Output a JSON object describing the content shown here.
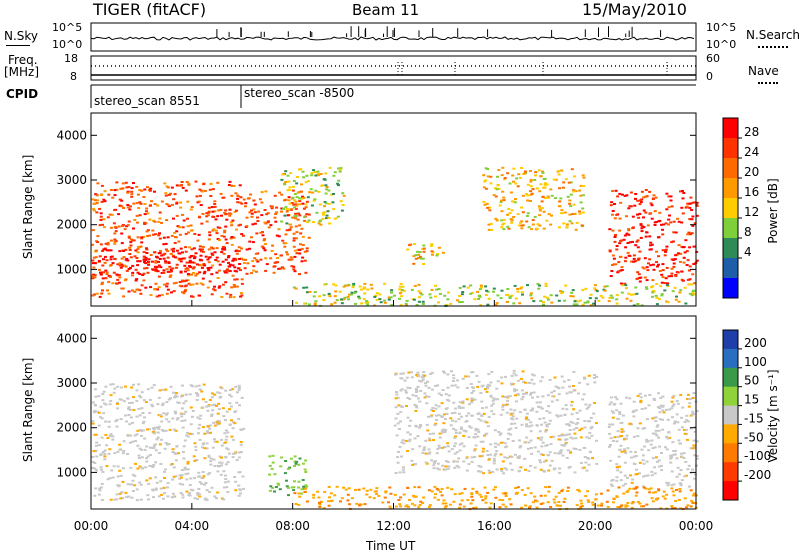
{
  "header": {
    "title": "TIGER (fitACF)",
    "beam": "Beam 11",
    "date": "15/May/2010"
  },
  "noise_panel": {
    "left_label": "N.Sky",
    "right_label": "N.Search",
    "y_top_tick": "10^5",
    "y_bottom_tick": "10^0"
  },
  "freq_panel": {
    "left_label_1": "Freq.",
    "left_label_2": "[MHz]",
    "left_tick_top": "18",
    "left_tick_bottom": "8",
    "right_label": "Nave",
    "right_tick_top": "60",
    "right_tick_bottom": "0"
  },
  "cpid_panel": {
    "label": "CPID",
    "program_1": "stereo_scan 8551",
    "program_2": "stereo_scan -8500"
  },
  "power_panel": {
    "ylabel": "Slant Range [km]",
    "colorbar_label": "Power [dB]",
    "colorbar_ticks": [
      "28",
      "24",
      "20",
      "16",
      "12",
      "8",
      "4"
    ],
    "colors": [
      "#ff0000",
      "#ff3300",
      "#ff6a00",
      "#ff9900",
      "#ffcc00",
      "#7fcf3a",
      "#2e8b57",
      "#1e5ea8",
      "#0000ff"
    ]
  },
  "velocity_panel": {
    "ylabel": "Slant Range [km]",
    "colorbar_label": "Velocity [m s⁻¹]",
    "colorbar_ticks": [
      "200",
      "100",
      "50",
      "15",
      "-15",
      "-50",
      "-100",
      "-200"
    ],
    "colors": [
      "#1e3fa8",
      "#2a6fbf",
      "#3a9a4a",
      "#8fd23a",
      "#c8c8c8",
      "#ffaa00",
      "#ff7a00",
      "#ff3a00",
      "#ff0000"
    ]
  },
  "x_axis": {
    "label": "Time UT",
    "ticks": [
      "00:00",
      "04:00",
      "08:00",
      "12:00",
      "16:00",
      "20:00",
      "00:00"
    ]
  },
  "chart_data": {
    "type": "heatmap",
    "x_range_hours": [
      0,
      24
    ],
    "y_range_km": [
      180,
      4500
    ],
    "y_ticks": [
      1000,
      2000,
      3000,
      4000
    ],
    "power_clusters": [
      {
        "t0": 0.0,
        "t1": 6.0,
        "r0": 400,
        "r1": 3000,
        "level": 20
      },
      {
        "t0": 0.0,
        "t1": 6.0,
        "r0": 900,
        "r1": 1500,
        "level": 28
      },
      {
        "t0": 6.0,
        "t1": 8.6,
        "r0": 900,
        "r1": 2800,
        "level": 22
      },
      {
        "t0": 7.5,
        "t1": 10.0,
        "r0": 2000,
        "r1": 3300,
        "level": 8
      },
      {
        "t0": 12.5,
        "t1": 14.0,
        "r0": 1100,
        "r1": 1600,
        "level": 12
      },
      {
        "t0": 15.5,
        "t1": 19.5,
        "r0": 1900,
        "r1": 3300,
        "level": 12
      },
      {
        "t0": 20.5,
        "t1": 24.0,
        "r0": 700,
        "r1": 2800,
        "level": 26
      },
      {
        "t0": 8.0,
        "t1": 24.0,
        "r0": 200,
        "r1": 700,
        "level": 8
      }
    ],
    "velocity_clusters": [
      {
        "t0": 0.0,
        "t1": 6.0,
        "r0": 400,
        "r1": 3000,
        "v": 0
      },
      {
        "t0": 7.0,
        "t1": 8.5,
        "r0": 500,
        "r1": 1400,
        "v": 30
      },
      {
        "t0": 12.0,
        "t1": 20.0,
        "r0": 1000,
        "r1": 3300,
        "v": 0
      },
      {
        "t0": 20.5,
        "t1": 24.0,
        "r0": 700,
        "r1": 2800,
        "v": 0
      },
      {
        "t0": 8.0,
        "t1": 24.0,
        "r0": 200,
        "r1": 700,
        "v": -40
      }
    ]
  }
}
